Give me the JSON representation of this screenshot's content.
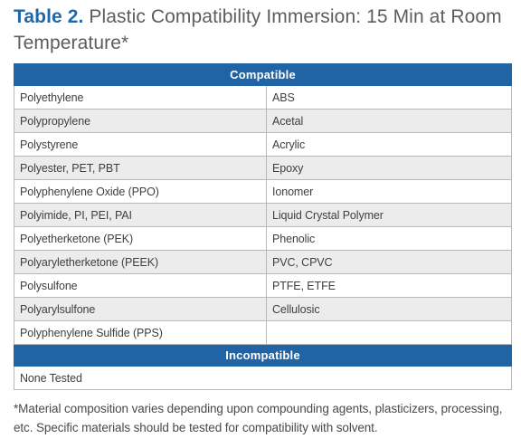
{
  "title": {
    "label": "Table 2.",
    "text": " Plastic Compatibility Immersion: 15 Min at Room Temperature*"
  },
  "table": {
    "compatible_header": "Compatible",
    "compatible_rows": [
      [
        "Polyethylene",
        "ABS"
      ],
      [
        "Polypropylene",
        "Acetal"
      ],
      [
        "Polystyrene",
        "Acrylic"
      ],
      [
        "Polyester, PET, PBT",
        "Epoxy"
      ],
      [
        "Polyphenylene Oxide (PPO)",
        "Ionomer"
      ],
      [
        "Polyimide, PI, PEI, PAI",
        "Liquid Crystal Polymer"
      ],
      [
        "Polyetherketone (PEK)",
        "Phenolic"
      ],
      [
        "Polyaryletherketone (PEEK)",
        "PVC, CPVC"
      ],
      [
        "Polysulfone",
        "PTFE, ETFE"
      ],
      [
        "Polyarylsulfone",
        "Cellulosic"
      ],
      [
        "Polyphenylene Sulfide (PPS)",
        ""
      ]
    ],
    "incompatible_header": "Incompatible",
    "incompatible_rows": [
      [
        "None Tested"
      ]
    ]
  },
  "footnote": "*Material composition varies depending upon compounding agents, plasticizers, processing, etc. Specific materials should be tested for compatibility with solvent."
}
